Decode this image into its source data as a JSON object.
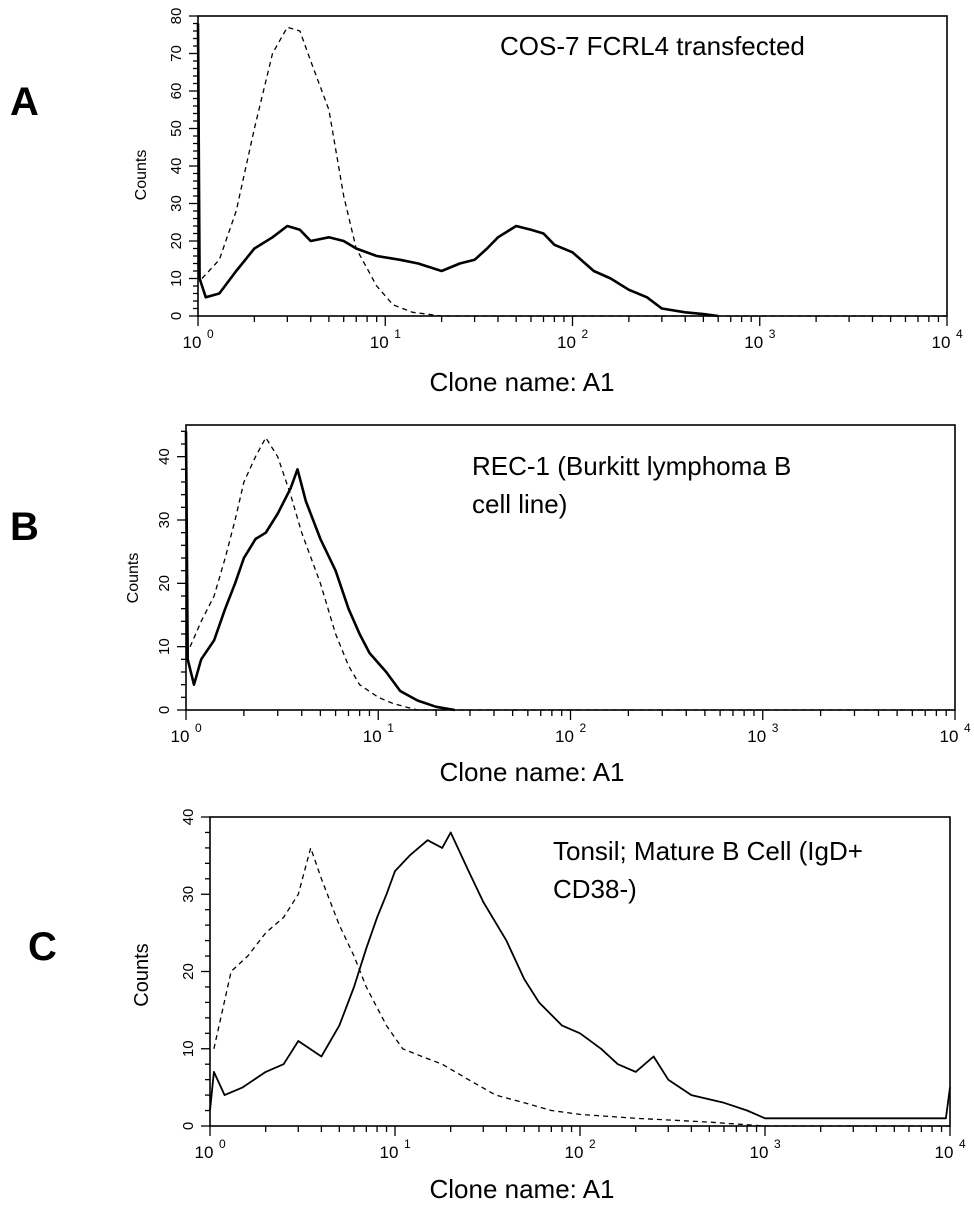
{
  "chart_data": [
    {
      "panel": "A",
      "type": "line",
      "annotation": [
        "COS-7 FCRL4 transfected"
      ],
      "xlabel": "Clone name: A1",
      "ylabel": "Counts",
      "xscale": "log",
      "xlim": [
        1,
        10000
      ],
      "ylim": [
        0,
        80
      ],
      "yticks": [
        0,
        10,
        20,
        30,
        40,
        50,
        60,
        70,
        80
      ],
      "xticks": [
        {
          "base": "10",
          "exp": "0"
        },
        {
          "base": "10",
          "exp": "1"
        },
        {
          "base": "10",
          "exp": "2"
        },
        {
          "base": "10",
          "exp": "3"
        },
        {
          "base": "10",
          "exp": "4"
        }
      ],
      "series": [
        {
          "style": "solid",
          "points": [
            [
              1.0,
              78
            ],
            [
              1.02,
              10
            ],
            [
              1.1,
              5
            ],
            [
              1.3,
              6
            ],
            [
              1.6,
              12
            ],
            [
              2.0,
              18
            ],
            [
              2.5,
              21
            ],
            [
              3.0,
              24
            ],
            [
              3.5,
              23
            ],
            [
              4.0,
              20
            ],
            [
              5.0,
              21
            ],
            [
              6.0,
              20
            ],
            [
              7.0,
              18
            ],
            [
              9.0,
              16
            ],
            [
              12,
              15
            ],
            [
              15,
              14
            ],
            [
              20,
              12
            ],
            [
              25,
              14
            ],
            [
              30,
              15
            ],
            [
              35,
              18
            ],
            [
              40,
              21
            ],
            [
              50,
              24
            ],
            [
              60,
              23
            ],
            [
              70,
              22
            ],
            [
              80,
              19
            ],
            [
              100,
              17
            ],
            [
              130,
              12
            ],
            [
              160,
              10
            ],
            [
              200,
              7
            ],
            [
              250,
              5
            ],
            [
              300,
              2
            ],
            [
              400,
              1
            ],
            [
              500,
              0.5
            ],
            [
              600,
              0
            ]
          ]
        },
        {
          "style": "dashed",
          "points": [
            [
              1.05,
              10
            ],
            [
              1.3,
              15
            ],
            [
              1.6,
              28
            ],
            [
              2.0,
              50
            ],
            [
              2.5,
              70
            ],
            [
              3.0,
              77
            ],
            [
              3.5,
              76
            ],
            [
              4.0,
              68
            ],
            [
              5.0,
              55
            ],
            [
              6.0,
              32
            ],
            [
              7.0,
              18
            ],
            [
              9.0,
              8
            ],
            [
              11,
              3
            ],
            [
              14,
              1
            ],
            [
              20,
              0
            ],
            [
              10000,
              0
            ]
          ]
        }
      ]
    },
    {
      "panel": "B",
      "type": "line",
      "annotation": [
        "REC-1 (Burkitt lymphoma B",
        "cell line)"
      ],
      "xlabel": "Clone name: A1",
      "ylabel": "Counts",
      "xscale": "log",
      "xlim": [
        1,
        10000
      ],
      "ylim": [
        0,
        45
      ],
      "yticks": [
        0,
        10,
        20,
        30,
        40
      ],
      "xticks": [
        {
          "base": "10",
          "exp": "0"
        },
        {
          "base": "10",
          "exp": "1"
        },
        {
          "base": "10",
          "exp": "2"
        },
        {
          "base": "10",
          "exp": "3"
        },
        {
          "base": "10",
          "exp": "4"
        }
      ],
      "series": [
        {
          "style": "solid",
          "points": [
            [
              1.0,
              44
            ],
            [
              1.02,
              8
            ],
            [
              1.1,
              4
            ],
            [
              1.2,
              8
            ],
            [
              1.4,
              11
            ],
            [
              1.6,
              16
            ],
            [
              1.8,
              20
            ],
            [
              2.0,
              24
            ],
            [
              2.3,
              27
            ],
            [
              2.6,
              28
            ],
            [
              3.0,
              31
            ],
            [
              3.5,
              35
            ],
            [
              3.8,
              38
            ],
            [
              4.2,
              33
            ],
            [
              5.0,
              27
            ],
            [
              6.0,
              22
            ],
            [
              7.0,
              16
            ],
            [
              8.0,
              12
            ],
            [
              9.0,
              9
            ],
            [
              11,
              6
            ],
            [
              13,
              3
            ],
            [
              16,
              1.5
            ],
            [
              20,
              0.5
            ],
            [
              25,
              0
            ]
          ]
        },
        {
          "style": "dashed",
          "points": [
            [
              1.05,
              10
            ],
            [
              1.2,
              14
            ],
            [
              1.4,
              18
            ],
            [
              1.6,
              24
            ],
            [
              1.8,
              30
            ],
            [
              2.0,
              36
            ],
            [
              2.3,
              40
            ],
            [
              2.6,
              43
            ],
            [
              3.0,
              40
            ],
            [
              3.5,
              34
            ],
            [
              4.0,
              28
            ],
            [
              5.0,
              20
            ],
            [
              6.0,
              12
            ],
            [
              7.0,
              7
            ],
            [
              8.0,
              4
            ],
            [
              10,
              2
            ],
            [
              12,
              1
            ],
            [
              16,
              0
            ],
            [
              10000,
              0
            ]
          ]
        }
      ]
    },
    {
      "panel": "C",
      "type": "line",
      "annotation": [
        "Tonsil; Mature B Cell (IgD+",
        "CD38-)"
      ],
      "xlabel": "Clone name: A1",
      "ylabel": "Counts",
      "xscale": "log",
      "xlim": [
        1,
        10000
      ],
      "ylim": [
        0,
        40
      ],
      "yticks": [
        0,
        10,
        20,
        30,
        40
      ],
      "xticks": [
        {
          "base": "10",
          "exp": "0"
        },
        {
          "base": "10",
          "exp": "1"
        },
        {
          "base": "10",
          "exp": "2"
        },
        {
          "base": "10",
          "exp": "3"
        },
        {
          "base": "10",
          "exp": "4"
        }
      ],
      "series": [
        {
          "style": "solid",
          "points": [
            [
              1.0,
              2
            ],
            [
              1.05,
              7
            ],
            [
              1.2,
              4
            ],
            [
              1.5,
              5
            ],
            [
              2.0,
              7
            ],
            [
              2.5,
              8
            ],
            [
              3.0,
              11
            ],
            [
              4.0,
              9
            ],
            [
              5.0,
              13
            ],
            [
              6.0,
              18
            ],
            [
              7.0,
              23
            ],
            [
              8.0,
              27
            ],
            [
              9.0,
              30
            ],
            [
              10,
              33
            ],
            [
              12,
              35
            ],
            [
              15,
              37
            ],
            [
              18,
              36
            ],
            [
              20,
              38
            ],
            [
              25,
              33
            ],
            [
              30,
              29
            ],
            [
              40,
              24
            ],
            [
              50,
              19
            ],
            [
              60,
              16
            ],
            [
              80,
              13
            ],
            [
              100,
              12
            ],
            [
              130,
              10
            ],
            [
              160,
              8
            ],
            [
              200,
              7
            ],
            [
              250,
              9
            ],
            [
              300,
              6
            ],
            [
              400,
              4
            ],
            [
              600,
              3
            ],
            [
              800,
              2
            ],
            [
              1000,
              1
            ],
            [
              2000,
              1
            ],
            [
              5000,
              1
            ],
            [
              9500,
              1
            ],
            [
              10000,
              5
            ]
          ]
        },
        {
          "style": "dashed",
          "points": [
            [
              1.05,
              10
            ],
            [
              1.3,
              20
            ],
            [
              1.6,
              22
            ],
            [
              2.0,
              25
            ],
            [
              2.5,
              27
            ],
            [
              3.0,
              30
            ],
            [
              3.5,
              36
            ],
            [
              4.0,
              32
            ],
            [
              5.0,
              26
            ],
            [
              6.0,
              22
            ],
            [
              7.0,
              18
            ],
            [
              9.0,
              13
            ],
            [
              11,
              10
            ],
            [
              14,
              9
            ],
            [
              18,
              8
            ],
            [
              25,
              6
            ],
            [
              35,
              4
            ],
            [
              50,
              3
            ],
            [
              70,
              2
            ],
            [
              100,
              1.5
            ],
            [
              200,
              1
            ],
            [
              500,
              0.5
            ],
            [
              1000,
              0
            ],
            [
              10000,
              0
            ]
          ]
        }
      ]
    }
  ],
  "panels": [
    {
      "letter": "A"
    },
    {
      "letter": "B"
    },
    {
      "letter": "C"
    }
  ]
}
